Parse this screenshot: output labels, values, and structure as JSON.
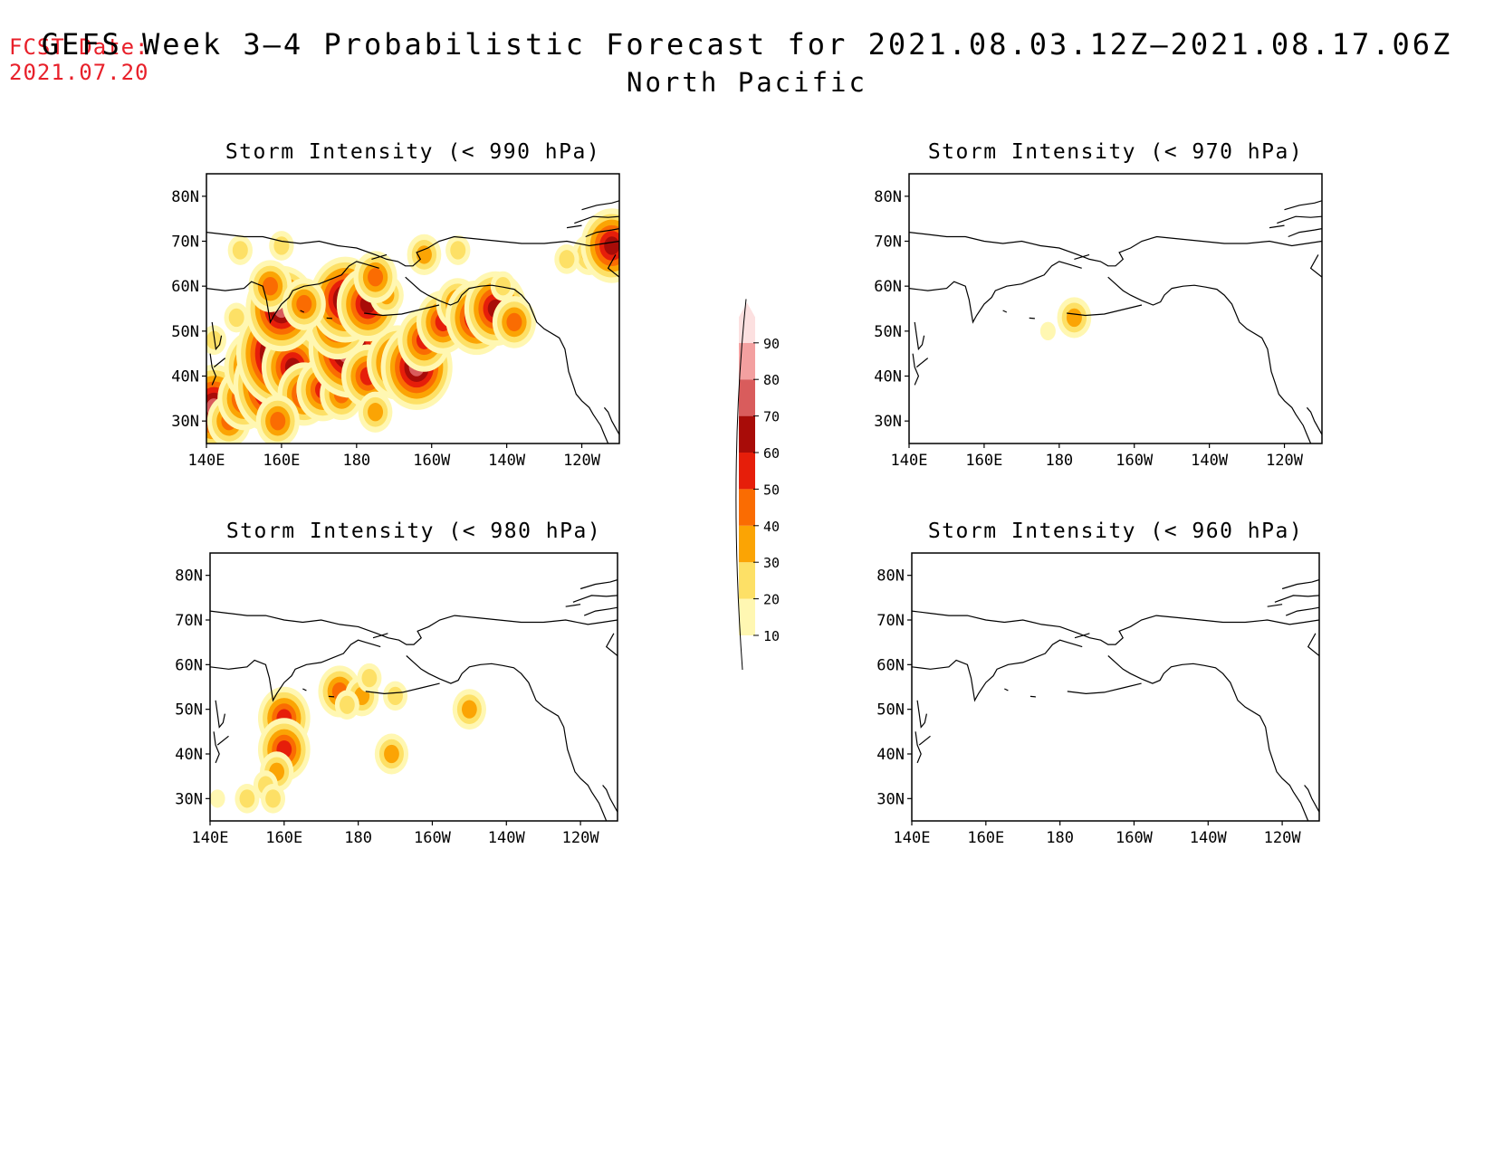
{
  "header": {
    "fcst_label": "FCST Date:",
    "fcst_date": "2021.07.20",
    "title": "GEFS Week 3–4 Probabilistic Forecast for 2021.08.03.12Z–2021.08.17.06Z",
    "subtitle": "North Pacific"
  },
  "colors": {
    "text_red": "#e8202a",
    "shading": [
      "#fff7b2",
      "#fde066",
      "#fba404",
      "#fa6c02",
      "#e61e0a",
      "#a80c08",
      "#d95c5c",
      "#f3a0a0",
      "#fce0e0"
    ]
  },
  "colorbar": {
    "levels": [
      10,
      20,
      30,
      40,
      50,
      60,
      70,
      80,
      90
    ],
    "labels": [
      "10",
      "20",
      "30",
      "40",
      "50",
      "60",
      "70",
      "80",
      "90"
    ]
  },
  "axes": {
    "lon_ticks": [
      "140E",
      "160E",
      "180",
      "160W",
      "140W",
      "120W"
    ],
    "lat_ticks": [
      "30N",
      "40N",
      "50N",
      "60N",
      "70N",
      "80N"
    ],
    "lon_range": [
      140,
      250
    ],
    "lat_range": [
      25,
      85
    ]
  },
  "panels": [
    {
      "title": "Storm Intensity (< 990 hPa)",
      "blobs": [
        {
          "lon": 142,
          "lat": 33,
          "p": 70
        },
        {
          "lon": 146,
          "lat": 30,
          "p": 40
        },
        {
          "lon": 150,
          "lat": 35,
          "p": 50
        },
        {
          "lon": 153,
          "lat": 42,
          "p": 60
        },
        {
          "lon": 158,
          "lat": 38,
          "p": 80
        },
        {
          "lon": 160,
          "lat": 45,
          "p": 90
        },
        {
          "lon": 163,
          "lat": 42,
          "p": 60
        },
        {
          "lon": 166,
          "lat": 36,
          "p": 50
        },
        {
          "lon": 159,
          "lat": 30,
          "p": 40
        },
        {
          "lon": 171,
          "lat": 37,
          "p": 50
        },
        {
          "lon": 176,
          "lat": 36,
          "p": 40
        },
        {
          "lon": 178,
          "lat": 46,
          "p": 80
        },
        {
          "lon": 183,
          "lat": 40,
          "p": 50
        },
        {
          "lon": 185,
          "lat": 32,
          "p": 30
        },
        {
          "lon": 191,
          "lat": 43,
          "p": 60
        },
        {
          "lon": 196,
          "lat": 42,
          "p": 70
        },
        {
          "lon": 198,
          "lat": 48,
          "p": 50
        },
        {
          "lon": 175,
          "lat": 52,
          "p": 60
        },
        {
          "lon": 177,
          "lat": 57,
          "p": 70
        },
        {
          "lon": 183,
          "lat": 56,
          "p": 60
        },
        {
          "lon": 188,
          "lat": 58,
          "p": 30
        },
        {
          "lon": 160,
          "lat": 55,
          "p": 70
        },
        {
          "lon": 157,
          "lat": 60,
          "p": 40
        },
        {
          "lon": 166,
          "lat": 56,
          "p": 40
        },
        {
          "lon": 148,
          "lat": 53,
          "p": 20
        },
        {
          "lon": 142,
          "lat": 48,
          "p": 20
        },
        {
          "lon": 203,
          "lat": 52,
          "p": 50
        },
        {
          "lon": 207,
          "lat": 56,
          "p": 40
        },
        {
          "lon": 212,
          "lat": 53,
          "p": 60
        },
        {
          "lon": 217,
          "lat": 55,
          "p": 60
        },
        {
          "lon": 222,
          "lat": 52,
          "p": 40
        },
        {
          "lon": 149,
          "lat": 68,
          "p": 20
        },
        {
          "lon": 160,
          "lat": 69,
          "p": 20
        },
        {
          "lon": 198,
          "lat": 67,
          "p": 30
        },
        {
          "lon": 207,
          "lat": 68,
          "p": 20
        },
        {
          "lon": 242,
          "lat": 67,
          "p": 30
        },
        {
          "lon": 248,
          "lat": 69,
          "p": 60
        },
        {
          "lon": 236,
          "lat": 66,
          "p": 20
        },
        {
          "lon": 185,
          "lat": 62,
          "p": 40
        },
        {
          "lon": 219,
          "lat": 60,
          "p": 20
        }
      ]
    },
    {
      "title": "Storm Intensity (< 970 hPa)",
      "blobs": [
        {
          "lon": 184,
          "lat": 53,
          "p": 30
        },
        {
          "lon": 177,
          "lat": 50,
          "p": 10
        }
      ]
    },
    {
      "title": "Storm Intensity (< 980 hPa)",
      "blobs": [
        {
          "lon": 160,
          "lat": 48,
          "p": 50
        },
        {
          "lon": 160,
          "lat": 41,
          "p": 50
        },
        {
          "lon": 158,
          "lat": 36,
          "p": 30
        },
        {
          "lon": 155,
          "lat": 33,
          "p": 20
        },
        {
          "lon": 150,
          "lat": 30,
          "p": 20
        },
        {
          "lon": 157,
          "lat": 30,
          "p": 20
        },
        {
          "lon": 142,
          "lat": 30,
          "p": 10
        },
        {
          "lon": 175,
          "lat": 54,
          "p": 40
        },
        {
          "lon": 181,
          "lat": 53,
          "p": 30
        },
        {
          "lon": 183,
          "lat": 57,
          "p": 20
        },
        {
          "lon": 177,
          "lat": 51,
          "p": 20
        },
        {
          "lon": 189,
          "lat": 40,
          "p": 30
        },
        {
          "lon": 210,
          "lat": 50,
          "p": 30
        },
        {
          "lon": 190,
          "lat": 53,
          "p": 20
        }
      ]
    },
    {
      "title": "Storm Intensity (< 960 hPa)",
      "blobs": []
    }
  ]
}
